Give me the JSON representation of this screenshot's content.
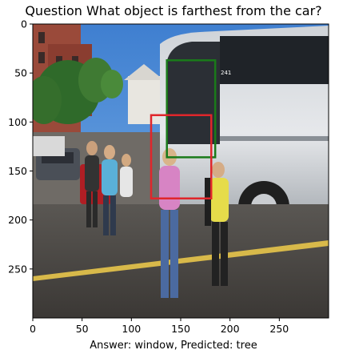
{
  "figure": {
    "title": "Question What object is farthest from the car?",
    "caption": "Answer: window, Predicted: tree",
    "colors": {
      "green_box": "#1a7a1a",
      "red_box": "#e0262b"
    }
  },
  "axes": {
    "x_ticks": [
      "0",
      "50",
      "100",
      "150",
      "200",
      "250"
    ],
    "y_ticks": [
      "0",
      "50",
      "100",
      "150",
      "200",
      "250"
    ],
    "x_range": [
      0,
      300
    ],
    "y_range": [
      0,
      300
    ]
  },
  "boxes": [
    {
      "name": "green-bounding-box",
      "color": "#1a7a1a",
      "x1": 136,
      "y1": 37,
      "x2": 185,
      "y2": 136
    },
    {
      "name": "red-bounding-box",
      "color": "#e0262b",
      "x1": 120,
      "y1": 93,
      "x2": 181,
      "y2": 178
    }
  ]
}
